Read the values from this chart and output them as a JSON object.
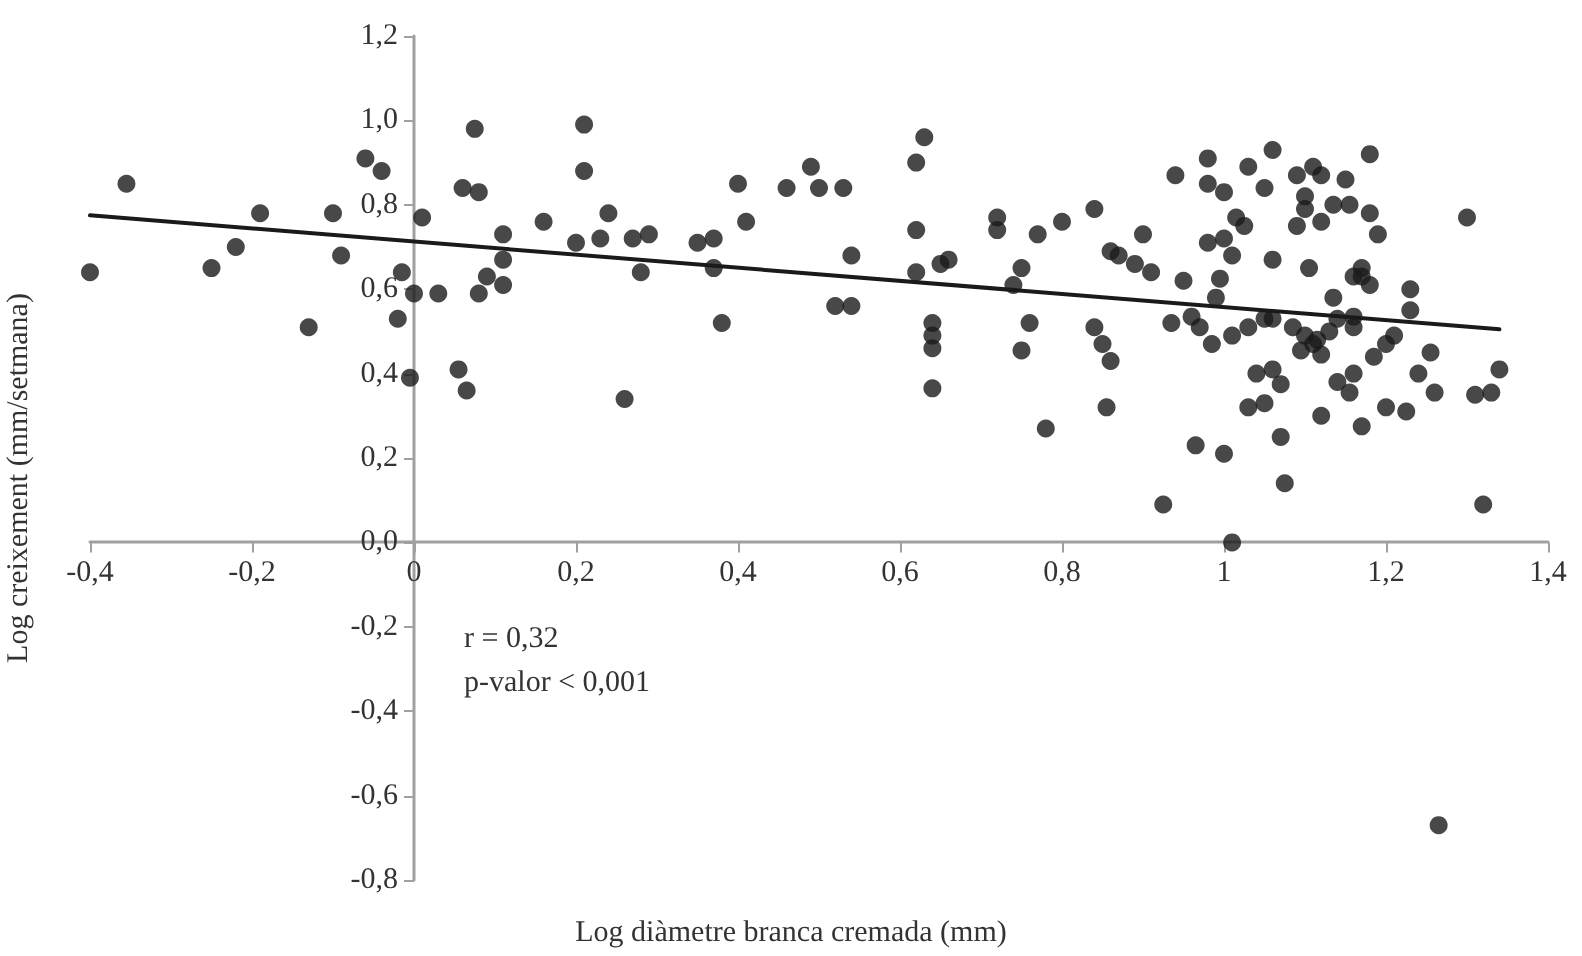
{
  "chart_data": {
    "type": "scatter",
    "xlabel": "Log diàmetre branca cremada (mm)",
    "ylabel": "Log creixement (mm/setmana)",
    "annotations": [
      "r = 0,32",
      "p-valor < 0,001"
    ],
    "xlim": [
      -0.4,
      1.4
    ],
    "ylim": [
      -0.8,
      1.2
    ],
    "xticks": [
      {
        "value": -0.4,
        "label": "-0,4"
      },
      {
        "value": -0.2,
        "label": "-0,2"
      },
      0,
      {
        "value": 0.2,
        "label": "0,2"
      },
      {
        "value": 0.4,
        "label": "0,4"
      },
      {
        "value": 0.6,
        "label": "0,6"
      },
      {
        "value": 0.8,
        "label": "0,8"
      },
      1,
      {
        "value": 1.2,
        "label": "1,2"
      },
      {
        "value": 1.4,
        "label": "1,4"
      }
    ],
    "yticks": [
      {
        "value": -0.8,
        "label": "-0,8"
      },
      {
        "value": -0.6,
        "label": "-0,6"
      },
      {
        "value": -0.4,
        "label": "-0,4"
      },
      {
        "value": -0.2,
        "label": "-0,2"
      },
      {
        "value": 0,
        "label": "0,0"
      },
      {
        "value": 0.2,
        "label": "0,2"
      },
      {
        "value": 0.4,
        "label": "0,4"
      },
      {
        "value": 0.6,
        "label": "0,6"
      },
      {
        "value": 0.8,
        "label": "0,8"
      },
      {
        "value": 1.0,
        "label": "1,0"
      },
      {
        "value": 1.2,
        "label": "1,2"
      }
    ],
    "grid": false,
    "series": [
      {
        "color": "#1a1a1a",
        "marker": "circle",
        "x": [
          -0.4,
          -0.355,
          -0.25,
          -0.22,
          -0.19,
          -0.13,
          -0.1,
          -0.09,
          -0.06,
          -0.04,
          -0.015,
          -0.02,
          -0.005,
          0.0,
          0.01,
          0.03,
          0.055,
          0.065,
          0.075,
          0.06,
          0.08,
          0.08,
          0.09,
          0.11,
          0.11,
          0.11,
          0.16,
          0.21,
          0.21,
          0.2,
          0.23,
          0.24,
          0.27,
          0.29,
          0.28,
          0.26,
          0.35,
          0.37,
          0.37,
          0.38,
          0.4,
          0.41,
          0.46,
          0.49,
          0.5,
          0.53,
          0.54,
          0.52,
          0.54,
          0.62,
          0.62,
          0.63,
          0.62,
          0.65,
          0.66,
          0.64,
          0.64,
          0.64,
          0.64,
          0.72,
          0.72,
          0.75,
          0.74,
          0.76,
          0.75,
          0.77,
          0.78,
          0.8,
          0.84,
          0.86,
          0.87,
          0.9,
          0.89,
          0.91,
          0.84,
          0.85,
          0.86,
          0.855,
          0.94,
          0.98,
          0.98,
          1.0,
          1.03,
          1.06,
          1.05,
          1.09,
          1.11,
          1.12,
          1.15,
          1.18,
          1.1,
          1.1,
          1.09,
          1.12,
          1.135,
          1.155,
          1.18,
          1.19,
          1.015,
          1.025,
          0.98,
          1.0,
          1.01,
          1.06,
          1.105,
          1.16,
          1.17,
          1.18,
          1.17,
          1.23,
          1.23,
          1.3,
          0.95,
          0.995,
          0.99,
          0.935,
          0.96,
          0.97,
          0.985,
          1.01,
          1.03,
          1.05,
          1.06,
          1.085,
          1.1,
          1.11,
          1.095,
          1.12,
          1.115,
          1.13,
          1.14,
          1.135,
          1.16,
          1.16,
          1.21,
          1.2,
          1.185,
          1.255,
          1.24,
          1.26,
          1.34,
          1.31,
          1.33,
          1.04,
          1.06,
          1.07,
          1.14,
          1.16,
          1.155,
          1.03,
          1.05,
          1.12,
          1.17,
          1.2,
          1.225,
          1.07,
          0.965,
          1.0,
          1.075,
          0.925,
          1.32,
          1.01,
          1.265
        ],
        "values": [
          0.64,
          0.85,
          0.65,
          0.7,
          0.78,
          0.51,
          0.78,
          0.68,
          0.91,
          0.88,
          0.64,
          0.53,
          0.39,
          0.59,
          0.77,
          0.59,
          0.41,
          0.36,
          0.98,
          0.84,
          0.83,
          0.59,
          0.63,
          0.61,
          0.67,
          0.73,
          0.76,
          0.99,
          0.88,
          0.71,
          0.72,
          0.78,
          0.72,
          0.73,
          0.64,
          0.34,
          0.71,
          0.72,
          0.65,
          0.52,
          0.85,
          0.76,
          0.84,
          0.89,
          0.84,
          0.84,
          0.68,
          0.56,
          0.56,
          0.74,
          0.9,
          0.96,
          0.64,
          0.66,
          0.67,
          0.52,
          0.49,
          0.46,
          0.365,
          0.77,
          0.74,
          0.65,
          0.61,
          0.52,
          0.455,
          0.73,
          0.27,
          0.76,
          0.79,
          0.69,
          0.68,
          0.73,
          0.66,
          0.64,
          0.51,
          0.47,
          0.43,
          0.32,
          0.87,
          0.91,
          0.85,
          0.83,
          0.89,
          0.93,
          0.84,
          0.87,
          0.89,
          0.87,
          0.86,
          0.92,
          0.82,
          0.79,
          0.75,
          0.76,
          0.8,
          0.8,
          0.78,
          0.73,
          0.77,
          0.75,
          0.71,
          0.72,
          0.68,
          0.67,
          0.65,
          0.63,
          0.65,
          0.61,
          0.63,
          0.6,
          0.55,
          0.77,
          0.62,
          0.625,
          0.58,
          0.52,
          0.535,
          0.51,
          0.47,
          0.49,
          0.51,
          0.53,
          0.53,
          0.51,
          0.49,
          0.47,
          0.455,
          0.445,
          0.48,
          0.5,
          0.53,
          0.58,
          0.51,
          0.535,
          0.49,
          0.47,
          0.44,
          0.45,
          0.4,
          0.355,
          0.41,
          0.35,
          0.355,
          0.4,
          0.41,
          0.375,
          0.38,
          0.4,
          0.355,
          0.32,
          0.33,
          0.3,
          0.275,
          0.32,
          0.31,
          0.25,
          0.23,
          0.21,
          0.14,
          0.09,
          0.09,
          0.0,
          -0.67
        ]
      },
      {
        "type": "line",
        "color": "#1a1a1a",
        "line_style": "solid",
        "marker": "none",
        "x": [
          -0.4,
          1.34
        ],
        "values": [
          0.775,
          0.505
        ]
      }
    ]
  }
}
